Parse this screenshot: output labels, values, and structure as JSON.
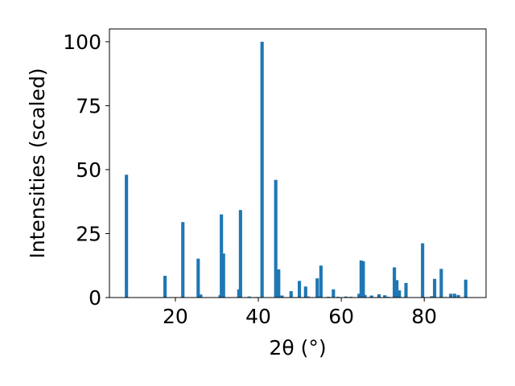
{
  "chart_data": {
    "type": "bar",
    "title": "",
    "xlabel": "2θ (°)",
    "ylabel": "Intensities (scaled)",
    "xlim": [
      4.1,
      94.9
    ],
    "ylim": [
      0,
      105
    ],
    "xticks": [
      20,
      40,
      60,
      80
    ],
    "yticks": [
      0,
      25,
      50,
      75,
      100
    ],
    "grid": false,
    "legend": "none",
    "bar_color": "#1f77b4",
    "bar_width": 0.8,
    "series": [
      {
        "x": [
          8.2,
          17.5,
          21.8,
          25.5,
          26.1,
          30.8,
          31.1,
          31.6,
          35.3,
          35.7,
          37.8,
          39.6,
          40.9,
          44.2,
          44.9,
          45.7,
          47.9,
          49.9,
          51.4,
          52.0,
          54.2,
          54.6,
          55.1,
          56.9,
          58.1,
          59.2,
          61.1,
          62.3,
          64.3,
          64.8,
          65.3,
          65.7,
          67.3,
          69.1,
          70.5,
          71.2,
          72.8,
          73.4,
          74.0,
          75.6,
          79.6,
          81.8,
          82.5,
          84.1,
          85.1,
          86.4,
          87.3,
          88.2,
          90.0
        ],
        "values": [
          48,
          8.5,
          29.5,
          15.2,
          1.2,
          1.0,
          32.5,
          17.2,
          3.2,
          34.2,
          0.4,
          0.2,
          100,
          46,
          11,
          0.8,
          2.5,
          6.5,
          4.3,
          0.4,
          7.5,
          0.5,
          12.5,
          0.3,
          3.2,
          0.3,
          0.4,
          0.3,
          1.5,
          14.5,
          14.2,
          1.0,
          0.8,
          1.3,
          0.9,
          0.3,
          11.8,
          6.8,
          2.8,
          5.7,
          21.2,
          0.5,
          7.3,
          11.2,
          0.2,
          1.5,
          1.5,
          1.0,
          7.0
        ]
      }
    ]
  }
}
